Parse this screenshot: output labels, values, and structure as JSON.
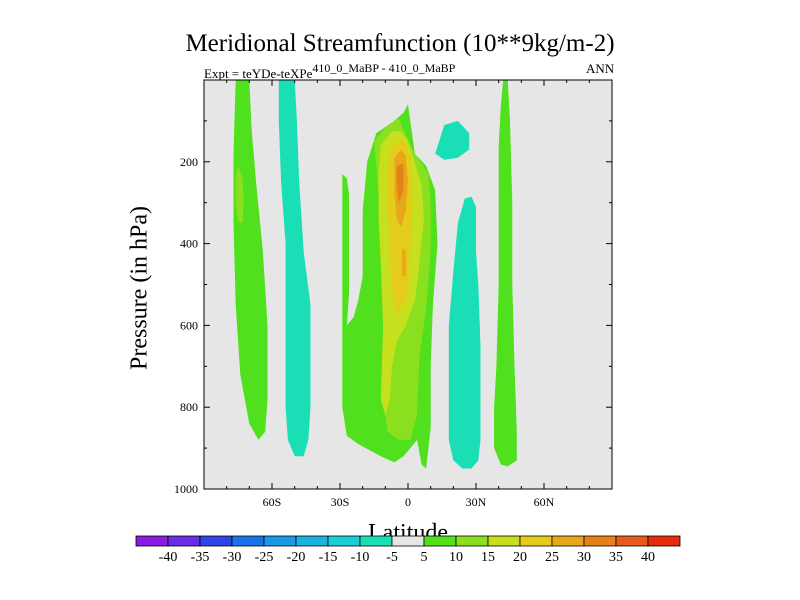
{
  "chart_data": {
    "type": "heatmap",
    "title": "Meridional Streamfunction (10**9kg/m-2)",
    "subtitle_left_prefix": "Expt = teYDe-teXPe",
    "subtitle_left_superscript": "410_0_MaBP - 410_0_MaBP",
    "subtitle_right": "ANN",
    "xlabel": "Latitude",
    "ylabel": "Pressure (in hPa)",
    "x_range": [
      -90,
      90
    ],
    "y_range": [
      0,
      1000
    ],
    "y_reversed": true,
    "x_ticks": [
      {
        "value": -60,
        "label": "60S"
      },
      {
        "value": -30,
        "label": "30S"
      },
      {
        "value": 0,
        "label": "0"
      },
      {
        "value": 30,
        "label": "30N"
      },
      {
        "value": 60,
        "label": "60N"
      }
    ],
    "y_ticks": [
      {
        "value": 200,
        "label": "200"
      },
      {
        "value": 400,
        "label": "400"
      },
      {
        "value": 600,
        "label": "600"
      },
      {
        "value": 800,
        "label": "800"
      },
      {
        "value": 1000,
        "label": "1000"
      }
    ],
    "background_color": "#e6e6e6",
    "colorbar": {
      "levels": [
        "-40",
        "-35",
        "-30",
        "-25",
        "-20",
        "-15",
        "-10",
        "-5",
        "5",
        "10",
        "15",
        "20",
        "25",
        "30",
        "35",
        "40"
      ],
      "colors": [
        "#8c1ce0",
        "#6a2ee6",
        "#2e44e6",
        "#1a73e6",
        "#1a9ae6",
        "#1ab2e0",
        "#1acdd6",
        "#1adfb6",
        "#e6e6e6",
        "#50e01e",
        "#8ae01e",
        "#c6e01e",
        "#e6cc1a",
        "#e6a81a",
        "#e6801a",
        "#e65a1a",
        "#e62e0c"
      ]
    },
    "regions": [
      {
        "name": "southern-high-lat-positive-cell",
        "color": "#50e01e",
        "points": [
          [
            -76,
            0
          ],
          [
            -70,
            0
          ],
          [
            -69,
            120
          ],
          [
            -67,
            250
          ],
          [
            -64,
            420
          ],
          [
            -62,
            600
          ],
          [
            -62,
            780
          ],
          [
            -63,
            860
          ],
          [
            -66,
            880
          ],
          [
            -70,
            840
          ],
          [
            -74,
            720
          ],
          [
            -76,
            550
          ],
          [
            -77,
            350
          ],
          [
            -77,
            180
          ]
        ]
      },
      {
        "name": "southern-positive-core",
        "color": "#8ae01e",
        "points": [
          [
            -75,
            210
          ],
          [
            -73,
            240
          ],
          [
            -72.5,
            300
          ],
          [
            -73,
            350
          ],
          [
            -75,
            345
          ],
          [
            -76,
            300
          ],
          [
            -76,
            240
          ]
        ]
      },
      {
        "name": "southern-midlat-negative-cell",
        "color": "#1adfb6",
        "points": [
          [
            -57,
            0
          ],
          [
            -50,
            0
          ],
          [
            -49,
            100
          ],
          [
            -48,
            250
          ],
          [
            -46,
            420
          ],
          [
            -43,
            550
          ],
          [
            -43,
            800
          ],
          [
            -44,
            880
          ],
          [
            -46,
            920
          ],
          [
            -50,
            920
          ],
          [
            -53,
            880
          ],
          [
            -54,
            800
          ],
          [
            -54,
            600
          ],
          [
            -54,
            400
          ],
          [
            -56,
            250
          ],
          [
            -57,
            100
          ]
        ]
      },
      {
        "name": "tropical-positive-cell",
        "color": "#50e01e",
        "points": [
          [
            -29,
            230
          ],
          [
            -27,
            240
          ],
          [
            -26,
            280
          ],
          [
            -26,
            400
          ],
          [
            -26,
            520
          ],
          [
            -27,
            600
          ],
          [
            -24,
            580
          ],
          [
            -22,
            540
          ],
          [
            -20,
            480
          ],
          [
            -20,
            320
          ],
          [
            -18,
            200
          ],
          [
            -14,
            130
          ],
          [
            -6,
            100
          ],
          [
            -2,
            80
          ],
          [
            0,
            60
          ],
          [
            1,
            100
          ],
          [
            3,
            180
          ],
          [
            8,
            210
          ],
          [
            12,
            270
          ],
          [
            13,
            400
          ],
          [
            11,
            550
          ],
          [
            10,
            700
          ],
          [
            10,
            850
          ],
          [
            8,
            950
          ],
          [
            6,
            940
          ],
          [
            4,
            880
          ],
          [
            -2,
            920
          ],
          [
            -6,
            935
          ],
          [
            -12,
            920
          ],
          [
            -22,
            890
          ],
          [
            -27,
            870
          ],
          [
            -29,
            800
          ],
          [
            -29,
            500
          ],
          [
            -29,
            350
          ]
        ]
      },
      {
        "name": "tropical-15-contour",
        "color": "#8ae01e",
        "points": [
          [
            -15,
            150
          ],
          [
            -9,
            110
          ],
          [
            -4,
            95
          ],
          [
            -2,
            120
          ],
          [
            2,
            170
          ],
          [
            9,
            230
          ],
          [
            10,
            300
          ],
          [
            10,
            420
          ],
          [
            8,
            560
          ],
          [
            5,
            680
          ],
          [
            4,
            820
          ],
          [
            1,
            880
          ],
          [
            -4,
            880
          ],
          [
            -9,
            860
          ],
          [
            -11,
            780
          ],
          [
            -11,
            600
          ],
          [
            -12,
            420
          ],
          [
            -13,
            280
          ],
          [
            -14,
            210
          ]
        ]
      },
      {
        "name": "tropical-20-contour",
        "color": "#c6e01e",
        "points": [
          [
            -12,
            160
          ],
          [
            -7,
            125
          ],
          [
            -3,
            125
          ],
          [
            0,
            150
          ],
          [
            3,
            200
          ],
          [
            6,
            260
          ],
          [
            7,
            340
          ],
          [
            5,
            450
          ],
          [
            3,
            540
          ],
          [
            -1,
            600
          ],
          [
            -5,
            640
          ],
          [
            -7,
            700
          ],
          [
            -8,
            780
          ],
          [
            -10,
            820
          ],
          [
            -12,
            780
          ],
          [
            -11,
            600
          ],
          [
            -12,
            450
          ],
          [
            -13,
            330
          ],
          [
            -13,
            230
          ]
        ]
      },
      {
        "name": "tropical-25-contour",
        "color": "#e6cc1a",
        "points": [
          [
            -8,
            170
          ],
          [
            -4,
            145
          ],
          [
            -1,
            150
          ],
          [
            1,
            190
          ],
          [
            2,
            300
          ],
          [
            1,
            420
          ],
          [
            0,
            520
          ],
          [
            -3,
            560
          ],
          [
            -5,
            580
          ],
          [
            -7,
            520
          ],
          [
            -8,
            420
          ],
          [
            -9,
            300
          ],
          [
            -9,
            220
          ]
        ]
      },
      {
        "name": "tropical-30-contour",
        "color": "#e6a81a",
        "points": [
          [
            -6,
            190
          ],
          [
            -3,
            170
          ],
          [
            -1,
            185
          ],
          [
            0,
            250
          ],
          [
            -1,
            320
          ],
          [
            -3,
            360
          ],
          [
            -5,
            340
          ],
          [
            -6,
            280
          ]
        ]
      },
      {
        "name": "tropical-35-core",
        "color": "#e6801a",
        "points": [
          [
            -5,
            210
          ],
          [
            -2,
            205
          ],
          [
            -2,
            270
          ],
          [
            -4,
            300
          ],
          [
            -5,
            260
          ]
        ]
      },
      {
        "name": "tropical-35-lower-core",
        "color": "#e6a81a",
        "points": [
          [
            -2.5,
            410
          ],
          [
            -1,
            420
          ],
          [
            -1,
            480
          ],
          [
            -2.5,
            480
          ]
        ]
      },
      {
        "name": "northern-upper-negative-blob",
        "color": "#1adfb6",
        "points": [
          [
            12,
            180
          ],
          [
            16,
            110
          ],
          [
            22,
            100
          ],
          [
            27,
            130
          ],
          [
            27,
            170
          ],
          [
            22,
            190
          ],
          [
            16,
            195
          ]
        ]
      },
      {
        "name": "northern-subtropical-negative-cell",
        "color": "#1adfb6",
        "points": [
          [
            18,
            720
          ],
          [
            18,
            600
          ],
          [
            20,
            470
          ],
          [
            22,
            350
          ],
          [
            25,
            290
          ],
          [
            28,
            285
          ],
          [
            30,
            310
          ],
          [
            30,
            420
          ],
          [
            31,
            500
          ],
          [
            32,
            650
          ],
          [
            32,
            780
          ],
          [
            32,
            880
          ],
          [
            31,
            930
          ],
          [
            28,
            950
          ],
          [
            24,
            950
          ],
          [
            20,
            930
          ],
          [
            18,
            880
          ]
        ]
      },
      {
        "name": "northern-midlat-positive-cell",
        "color": "#50e01e",
        "points": [
          [
            39,
            700
          ],
          [
            40,
            500
          ],
          [
            40,
            300
          ],
          [
            40,
            160
          ],
          [
            41,
            60
          ],
          [
            42,
            0
          ],
          [
            44,
            0
          ],
          [
            45,
            100
          ],
          [
            46,
            300
          ],
          [
            46,
            500
          ],
          [
            47,
            700
          ],
          [
            48,
            860
          ],
          [
            48,
            930
          ],
          [
            44,
            945
          ],
          [
            41,
            940
          ],
          [
            38,
            900
          ],
          [
            38,
            800
          ]
        ]
      }
    ]
  }
}
